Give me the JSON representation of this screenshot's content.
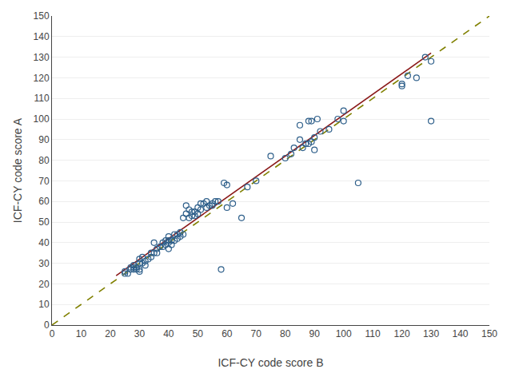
{
  "chart_data": {
    "type": "scatter",
    "xlabel": "ICF-CY code score B",
    "ylabel": "ICF-CY code score A",
    "xlim": [
      0,
      150
    ],
    "ylim": [
      0,
      150
    ],
    "xticks": [
      0,
      10,
      20,
      30,
      40,
      50,
      60,
      70,
      80,
      90,
      100,
      110,
      120,
      130,
      140,
      150
    ],
    "yticks": [
      0,
      10,
      20,
      30,
      40,
      50,
      60,
      70,
      80,
      90,
      100,
      110,
      120,
      130,
      140,
      150
    ],
    "grid": "y",
    "series": [
      {
        "type": "line",
        "color": "#808000",
        "line_style": "dashed",
        "x": [
          0,
          150
        ],
        "values": [
          0,
          150
        ]
      },
      {
        "type": "line",
        "color": "#8b1a1a",
        "line_style": "solid",
        "x": [
          22,
          130
        ],
        "values": [
          24,
          132
        ]
      },
      {
        "type": "scatter",
        "color": "#2e5f8a",
        "marker": "circle-open",
        "x": [
          25,
          25,
          26,
          27,
          27,
          28,
          28,
          28,
          29,
          29,
          30,
          30,
          30,
          30,
          31,
          31,
          32,
          32,
          33,
          34,
          34,
          35,
          35,
          36,
          36,
          37,
          38,
          38,
          39,
          39,
          40,
          40,
          40,
          40,
          41,
          41,
          42,
          42,
          43,
          43,
          44,
          44,
          45,
          45,
          46,
          46,
          47,
          47,
          48,
          48,
          49,
          49,
          50,
          50,
          51,
          51,
          52,
          53,
          53,
          54,
          55,
          55,
          56,
          57,
          58,
          59,
          60,
          60,
          62,
          65,
          67,
          70,
          75,
          80,
          82,
          83,
          85,
          85,
          86,
          87,
          88,
          88,
          89,
          89,
          90,
          90,
          91,
          92,
          95,
          98,
          100,
          100,
          105,
          120,
          120,
          122,
          125,
          128,
          130,
          130
        ],
        "values": [
          25,
          26,
          25,
          27,
          28,
          27,
          28,
          29,
          27,
          28,
          26,
          27,
          30,
          32,
          30,
          33,
          29,
          31,
          32,
          33,
          35,
          35,
          40,
          35,
          37,
          38,
          38,
          40,
          39,
          41,
          37,
          40,
          41,
          43,
          39,
          41,
          41,
          44,
          42,
          44,
          43,
          45,
          44,
          52,
          54,
          58,
          52,
          56,
          53,
          55,
          53,
          55,
          54,
          57,
          56,
          59,
          59,
          57,
          60,
          58,
          59,
          58,
          60,
          60,
          27,
          69,
          57,
          68,
          59,
          52,
          67,
          70,
          82,
          81,
          83,
          86,
          90,
          97,
          86,
          88,
          88,
          99,
          89,
          99,
          85,
          91,
          100,
          94,
          95,
          100,
          99,
          104,
          69,
          117,
          116,
          121,
          120,
          130,
          128,
          99
        ]
      }
    ]
  }
}
